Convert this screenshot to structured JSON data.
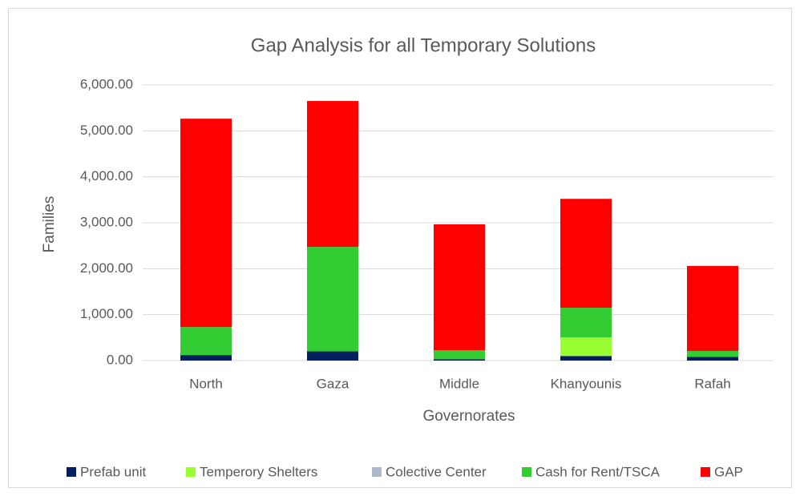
{
  "chart_data": {
    "type": "bar",
    "stacked": true,
    "title": "Gap Analysis for all Temporary Solutions",
    "x_label": "Governorates",
    "y_label": "Families",
    "categories": [
      "North",
      "Gaza",
      "Middle",
      "Khanyounis",
      "Rafah"
    ],
    "series": [
      {
        "name": "Prefab unit",
        "color": "#002060",
        "values": [
          120,
          200,
          30,
          100,
          80
        ]
      },
      {
        "name": "Temperory Shelters",
        "color": "#99ff33",
        "values": [
          0,
          0,
          0,
          405,
          0
        ]
      },
      {
        "name": "Colective Center",
        "color": "#adb9ca",
        "values": [
          0,
          0,
          0,
          0,
          0
        ]
      },
      {
        "name": "Cash for Rent/TSCA",
        "color": "#33cc33",
        "values": [
          610,
          2275,
          195,
          645,
          130
        ]
      },
      {
        "name": "GAP",
        "color": "#ff0000",
        "values": [
          4535,
          3175,
          2740,
          2370,
          1850
        ]
      }
    ],
    "ylim": [
      0,
      6000
    ],
    "yticks": [
      {
        "value": 0,
        "label": "0.00"
      },
      {
        "value": 1000,
        "label": "1,000.00"
      },
      {
        "value": 2000,
        "label": "2,000.00"
      },
      {
        "value": 3000,
        "label": "3,000.00"
      },
      {
        "value": 4000,
        "label": "4,000.00"
      },
      {
        "value": 5000,
        "label": "5,000.00"
      },
      {
        "value": 6000,
        "label": "6,000.00"
      }
    ],
    "grid": true,
    "legend": "bottom"
  }
}
